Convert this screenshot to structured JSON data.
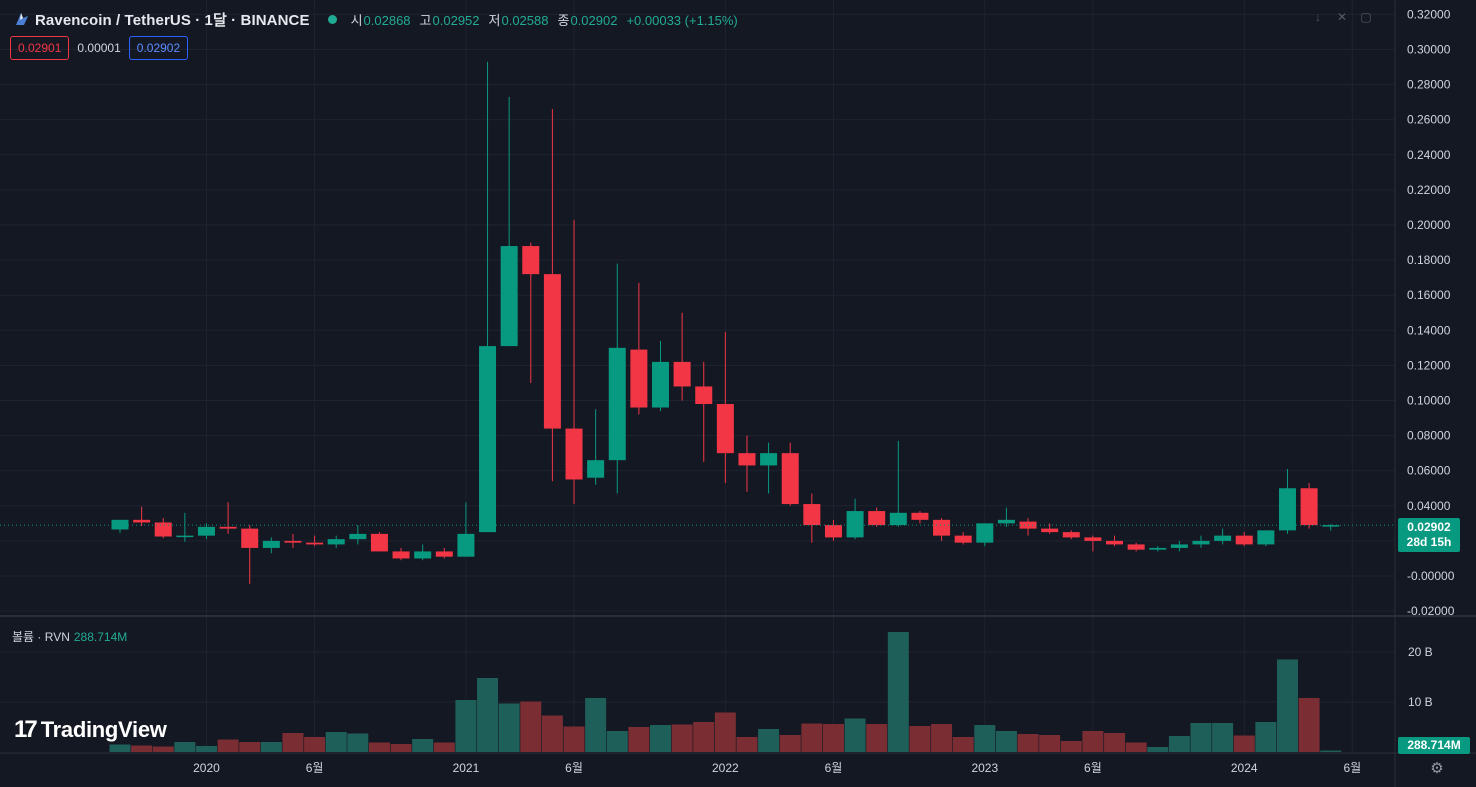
{
  "header": {
    "title": "Ravencoin / TetherUS · 1달 · BINANCE",
    "open_label": "시",
    "open": "0.02868",
    "high_label": "고",
    "high": "0.02952",
    "low_label": "저",
    "low": "0.02588",
    "close_label": "종",
    "close": "0.02902",
    "change": "+0.00033 (+1.15%)"
  },
  "trade": {
    "sell_price": "0.02901",
    "spread": "0.00001",
    "buy_price": "0.02902"
  },
  "volume_header": {
    "label": "볼륨 · RVN",
    "value": "288.714M"
  },
  "price_tag": {
    "price": "0.02902",
    "countdown": "28d 15h"
  },
  "volume_tag": "288.714M",
  "branding": {
    "name": "TradingView"
  },
  "icons": {
    "logo": "ravencoin-logo-icon",
    "gear": "gear-icon",
    "tools": [
      "arrow-down-icon",
      "close-icon",
      "maximize-icon"
    ]
  },
  "colors": {
    "up": "#089981",
    "down": "#f23645",
    "background": "#141823",
    "grid": "#1f2330",
    "vol_up": "#1f5f5a",
    "vol_down": "#7a2d33"
  },
  "chart_data": {
    "type": "candlestick",
    "title": "Ravencoin / TetherUS · 1달 · BINANCE",
    "price_axis": {
      "ticks": [
        "0.32000",
        "0.30000",
        "0.28000",
        "0.26000",
        "0.24000",
        "0.22000",
        "0.20000",
        "0.18000",
        "0.16000",
        "0.14000",
        "0.12000",
        "0.10000",
        "0.08000",
        "0.06000",
        "0.04000",
        "0.02000",
        "-0.00000",
        "-0.02000"
      ],
      "range": [
        -0.02,
        0.32
      ]
    },
    "volume_axis": {
      "ticks": [
        "20 B",
        "10 B"
      ]
    },
    "time_axis": {
      "labels": [
        {
          "text": "2020",
          "index": 4
        },
        {
          "text": "6월",
          "index": 9
        },
        {
          "text": "2021",
          "index": 16
        },
        {
          "text": "6월",
          "index": 21
        },
        {
          "text": "2022",
          "index": 28
        },
        {
          "text": "6월",
          "index": 33
        },
        {
          "text": "2023",
          "index": 40
        },
        {
          "text": "6월",
          "index": 45
        },
        {
          "text": "2024",
          "index": 52
        },
        {
          "text": "6월",
          "index": 57
        }
      ]
    },
    "last_price": 0.02902,
    "candles": [
      {
        "o": 0.0265,
        "h": 0.032,
        "l": 0.0245,
        "c": 0.032
      },
      {
        "o": 0.032,
        "h": 0.0395,
        "l": 0.0285,
        "c": 0.0305
      },
      {
        "o": 0.0305,
        "h": 0.033,
        "l": 0.0215,
        "c": 0.0225
      },
      {
        "o": 0.0225,
        "h": 0.036,
        "l": 0.0195,
        "c": 0.023
      },
      {
        "o": 0.023,
        "h": 0.03,
        "l": 0.021,
        "c": 0.028
      },
      {
        "o": 0.028,
        "h": 0.042,
        "l": 0.024,
        "c": 0.027
      },
      {
        "o": 0.027,
        "h": 0.029,
        "l": -0.0045,
        "c": 0.016
      },
      {
        "o": 0.016,
        "h": 0.022,
        "l": 0.013,
        "c": 0.02
      },
      {
        "o": 0.02,
        "h": 0.024,
        "l": 0.016,
        "c": 0.019
      },
      {
        "o": 0.019,
        "h": 0.023,
        "l": 0.017,
        "c": 0.018
      },
      {
        "o": 0.018,
        "h": 0.023,
        "l": 0.016,
        "c": 0.021
      },
      {
        "o": 0.021,
        "h": 0.029,
        "l": 0.018,
        "c": 0.024
      },
      {
        "o": 0.024,
        "h": 0.025,
        "l": 0.014,
        "c": 0.014
      },
      {
        "o": 0.014,
        "h": 0.016,
        "l": 0.009,
        "c": 0.01
      },
      {
        "o": 0.01,
        "h": 0.018,
        "l": 0.009,
        "c": 0.014
      },
      {
        "o": 0.014,
        "h": 0.016,
        "l": 0.01,
        "c": 0.011
      },
      {
        "o": 0.011,
        "h": 0.042,
        "l": 0.011,
        "c": 0.024
      },
      {
        "o": 0.025,
        "h": 0.293,
        "l": 0.025,
        "c": 0.131
      },
      {
        "o": 0.131,
        "h": 0.273,
        "l": 0.131,
        "c": 0.188
      },
      {
        "o": 0.188,
        "h": 0.19,
        "l": 0.11,
        "c": 0.172
      },
      {
        "o": 0.172,
        "h": 0.266,
        "l": 0.054,
        "c": 0.084
      },
      {
        "o": 0.084,
        "h": 0.203,
        "l": 0.041,
        "c": 0.055
      },
      {
        "o": 0.056,
        "h": 0.095,
        "l": 0.052,
        "c": 0.066
      },
      {
        "o": 0.066,
        "h": 0.178,
        "l": 0.047,
        "c": 0.13
      },
      {
        "o": 0.129,
        "h": 0.167,
        "l": 0.092,
        "c": 0.096
      },
      {
        "o": 0.096,
        "h": 0.134,
        "l": 0.094,
        "c": 0.122
      },
      {
        "o": 0.122,
        "h": 0.15,
        "l": 0.1,
        "c": 0.108
      },
      {
        "o": 0.108,
        "h": 0.122,
        "l": 0.065,
        "c": 0.098
      },
      {
        "o": 0.098,
        "h": 0.139,
        "l": 0.053,
        "c": 0.07
      },
      {
        "o": 0.07,
        "h": 0.08,
        "l": 0.048,
        "c": 0.063
      },
      {
        "o": 0.063,
        "h": 0.076,
        "l": 0.047,
        "c": 0.07
      },
      {
        "o": 0.07,
        "h": 0.076,
        "l": 0.04,
        "c": 0.041
      },
      {
        "o": 0.041,
        "h": 0.047,
        "l": 0.019,
        "c": 0.029
      },
      {
        "o": 0.029,
        "h": 0.032,
        "l": 0.02,
        "c": 0.022
      },
      {
        "o": 0.022,
        "h": 0.044,
        "l": 0.021,
        "c": 0.037
      },
      {
        "o": 0.037,
        "h": 0.039,
        "l": 0.028,
        "c": 0.029
      },
      {
        "o": 0.029,
        "h": 0.077,
        "l": 0.028,
        "c": 0.036
      },
      {
        "o": 0.036,
        "h": 0.037,
        "l": 0.03,
        "c": 0.032
      },
      {
        "o": 0.032,
        "h": 0.033,
        "l": 0.02,
        "c": 0.023
      },
      {
        "o": 0.023,
        "h": 0.025,
        "l": 0.018,
        "c": 0.019
      },
      {
        "o": 0.019,
        "h": 0.03,
        "l": 0.017,
        "c": 0.03
      },
      {
        "o": 0.03,
        "h": 0.039,
        "l": 0.028,
        "c": 0.032
      },
      {
        "o": 0.031,
        "h": 0.033,
        "l": 0.023,
        "c": 0.027
      },
      {
        "o": 0.027,
        "h": 0.03,
        "l": 0.024,
        "c": 0.025
      },
      {
        "o": 0.025,
        "h": 0.026,
        "l": 0.021,
        "c": 0.022
      },
      {
        "o": 0.022,
        "h": 0.023,
        "l": 0.014,
        "c": 0.02
      },
      {
        "o": 0.02,
        "h": 0.023,
        "l": 0.017,
        "c": 0.018
      },
      {
        "o": 0.018,
        "h": 0.019,
        "l": 0.014,
        "c": 0.015
      },
      {
        "o": 0.015,
        "h": 0.017,
        "l": 0.014,
        "c": 0.016
      },
      {
        "o": 0.016,
        "h": 0.02,
        "l": 0.014,
        "c": 0.018
      },
      {
        "o": 0.018,
        "h": 0.023,
        "l": 0.016,
        "c": 0.02
      },
      {
        "o": 0.02,
        "h": 0.027,
        "l": 0.018,
        "c": 0.023
      },
      {
        "o": 0.023,
        "h": 0.025,
        "l": 0.017,
        "c": 0.018
      },
      {
        "o": 0.018,
        "h": 0.026,
        "l": 0.017,
        "c": 0.026
      },
      {
        "o": 0.026,
        "h": 0.061,
        "l": 0.024,
        "c": 0.05
      },
      {
        "o": 0.05,
        "h": 0.053,
        "l": 0.027,
        "c": 0.029
      },
      {
        "o": 0.0287,
        "h": 0.0295,
        "l": 0.0259,
        "c": 0.029
      }
    ],
    "volume_billions": [
      1.5,
      1.3,
      1.1,
      2.0,
      1.2,
      2.5,
      2.0,
      2.0,
      3.8,
      3.0,
      4.0,
      3.7,
      1.9,
      1.6,
      2.6,
      1.9,
      10.4,
      14.8,
      9.7,
      10.1,
      7.3,
      5.1,
      10.8,
      4.2,
      5.0,
      5.4,
      5.5,
      6.0,
      7.9,
      3.0,
      4.6,
      3.4,
      5.7,
      5.6,
      6.7,
      5.6,
      24.0,
      5.2,
      5.6,
      3.0,
      5.4,
      4.2,
      3.6,
      3.4,
      2.2,
      4.2,
      3.8,
      1.9,
      1.0,
      3.2,
      5.8,
      5.8,
      3.3,
      6.0,
      18.5,
      10.8,
      0.29
    ]
  }
}
